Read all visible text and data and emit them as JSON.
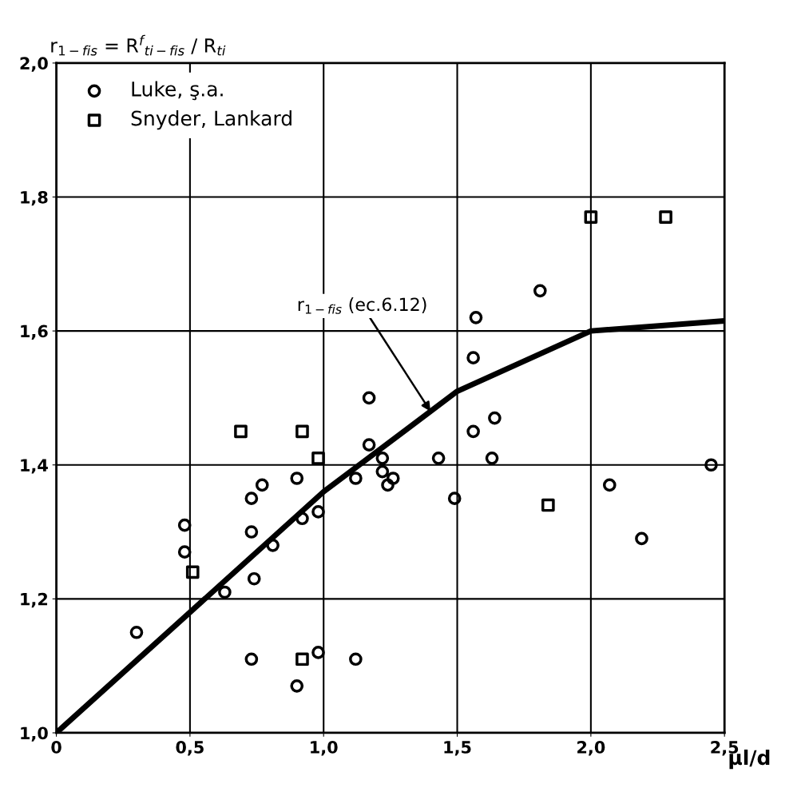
{
  "chart_data": {
    "type": "scatter",
    "ylabel": "r$_{1−fis}$ = R$^{f}$$_{ti−fis}$ / R$_{ti}$",
    "xlabel": "μl/d",
    "xlim": [
      0,
      2.5
    ],
    "ylim": [
      1.0,
      2.0
    ],
    "xticks": [
      {
        "value": 0,
        "label": "0"
      },
      {
        "value": 0.5,
        "label": "0,5"
      },
      {
        "value": 1.0,
        "label": "1,0"
      },
      {
        "value": 1.5,
        "label": "1,5"
      },
      {
        "value": 2.0,
        "label": "2,0"
      },
      {
        "value": 2.5,
        "label": "2,5"
      }
    ],
    "yticks": [
      {
        "value": 1.0,
        "label": "1,0"
      },
      {
        "value": 1.2,
        "label": "1,2"
      },
      {
        "value": 1.4,
        "label": "1,4"
      },
      {
        "value": 1.6,
        "label": "1,6"
      },
      {
        "value": 1.8,
        "label": "1,8"
      },
      {
        "value": 2.0,
        "label": "2,0"
      }
    ],
    "grid": true,
    "legend": "top left",
    "series": [
      {
        "name": "Luke, ş.a.",
        "marker": "circle",
        "color": "#000000",
        "x": [
          0.3,
          0.48,
          0.48,
          0.63,
          0.73,
          0.73,
          0.77,
          0.74,
          0.81,
          0.73,
          0.9,
          0.92,
          0.9,
          0.98,
          0.98,
          1.12,
          1.12,
          1.17,
          1.17,
          1.22,
          1.22,
          1.24,
          1.26,
          1.43,
          1.56,
          1.49,
          1.56,
          1.57,
          1.63,
          1.64,
          1.81,
          2.07,
          2.19,
          2.45
        ],
        "values": [
          1.15,
          1.31,
          1.27,
          1.21,
          1.3,
          1.35,
          1.37,
          1.23,
          1.28,
          1.11,
          1.38,
          1.32,
          1.07,
          1.12,
          1.33,
          1.38,
          1.11,
          1.5,
          1.43,
          1.41,
          1.39,
          1.37,
          1.38,
          1.41,
          1.45,
          1.35,
          1.56,
          1.62,
          1.41,
          1.47,
          1.66,
          1.37,
          1.29,
          1.4
        ]
      },
      {
        "name": "Snyder, Lankard",
        "marker": "square",
        "color": "#000000",
        "x": [
          0.51,
          0.69,
          0.92,
          0.98,
          0.92,
          1.84,
          2.0,
          2.28
        ],
        "values": [
          1.24,
          1.45,
          1.45,
          1.41,
          1.11,
          1.34,
          1.77,
          1.77
        ]
      },
      {
        "type": "line",
        "marker": "none",
        "color": "#000000",
        "x": [
          0,
          0.5,
          1.0,
          1.5,
          2.0,
          2.5
        ],
        "values": [
          1.0,
          1.18,
          1.36,
          1.51,
          1.6,
          1.615
        ]
      }
    ],
    "annotations": [
      {
        "text": "r$_{1−fis}$ (ec.6.12)",
        "x": 1.4,
        "y": 1.48
      }
    ]
  }
}
